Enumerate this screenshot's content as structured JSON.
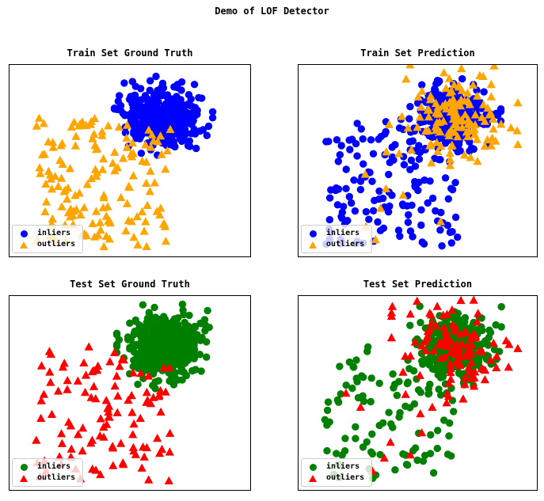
{
  "figure": {
    "title": "Demo of LOF Detector",
    "background": "#ffffff",
    "frame_color": "#000000"
  },
  "palette": {
    "train_inlier": "#0000ff",
    "train_outlier": "#ffa500",
    "test_inlier": "#008000",
    "test_outlier": "#ff0000",
    "legend_border": "#cccccc"
  },
  "chart_data": [
    {
      "type": "scatter",
      "title": "Train Set Ground Truth",
      "legend_position": "lower left",
      "axes": {
        "ticks": false,
        "grid": false,
        "frame": true
      },
      "legend": [
        {
          "label": "inliers",
          "marker": "circle",
          "color": "#0000ff"
        },
        {
          "label": "outliers",
          "marker": "triangle",
          "color": "#ffa500"
        }
      ],
      "series": [
        {
          "name": "inliers",
          "marker": "circle",
          "color": "#0000ff",
          "n": 380,
          "distribution": "gaussian",
          "center": [
            0.64,
            0.28
          ],
          "sigma": [
            0.077,
            0.083
          ],
          "seed": 101
        },
        {
          "name": "outliers",
          "marker": "triangle",
          "color": "#ffa500",
          "n": 150,
          "distribution": "uniform",
          "x_range": [
            0.11,
            0.67
          ],
          "y_range": [
            0.26,
            0.95
          ],
          "exclude": {
            "x_min": 0.5,
            "y_max": 0.33
          },
          "seed": 102
        }
      ]
    },
    {
      "type": "scatter",
      "title": "Train Set Prediction",
      "legend_position": "lower left",
      "axes": {
        "ticks": false,
        "grid": false,
        "frame": true
      },
      "legend": [
        {
          "label": "inliers",
          "marker": "circle",
          "color": "#0000ff"
        },
        {
          "label": "outliers",
          "marker": "triangle",
          "color": "#ffa500"
        }
      ],
      "series": [
        {
          "name": "inliers",
          "marker": "circle",
          "color": "#0000ff",
          "n": 280,
          "distribution": "gaussian",
          "center": [
            0.65,
            0.28
          ],
          "sigma": [
            0.075,
            0.081
          ],
          "seed": 201
        },
        {
          "name": "inliers",
          "marker": "circle",
          "color": "#0000ff",
          "n": 145,
          "distribution": "uniform",
          "x_range": [
            0.11,
            0.67
          ],
          "y_range": [
            0.26,
            0.95
          ],
          "exclude": {
            "x_min": 0.5,
            "y_max": 0.33
          },
          "seed": 202
        },
        {
          "name": "outliers",
          "marker": "triangle",
          "color": "#ffa500",
          "n": 130,
          "distribution": "gaussian",
          "center": [
            0.65,
            0.27
          ],
          "sigma": [
            0.102,
            0.112
          ],
          "seed": 203
        },
        {
          "name": "outliers",
          "marker": "triangle",
          "color": "#ffa500",
          "n": 8,
          "distribution": "uniform",
          "x_range": [
            0.12,
            0.66
          ],
          "y_range": [
            0.45,
            0.96
          ],
          "seed": 204
        }
      ]
    },
    {
      "type": "scatter",
      "title": "Test Set Ground Truth",
      "legend_position": "lower left",
      "axes": {
        "ticks": false,
        "grid": false,
        "frame": true
      },
      "legend": [
        {
          "label": "inliers",
          "marker": "circle",
          "color": "#008000"
        },
        {
          "label": "outliers",
          "marker": "triangle",
          "color": "#ff0000"
        }
      ],
      "series": [
        {
          "name": "inliers",
          "marker": "circle",
          "color": "#008000",
          "n": 450,
          "distribution": "gaussian",
          "center": [
            0.65,
            0.26
          ],
          "sigma": [
            0.077,
            0.082
          ],
          "seed": 301
        },
        {
          "name": "outliers",
          "marker": "triangle",
          "color": "#ff0000",
          "n": 110,
          "distribution": "uniform",
          "x_range": [
            0.11,
            0.67
          ],
          "y_range": [
            0.26,
            0.96
          ],
          "exclude": {
            "x_min": 0.5,
            "y_max": 0.33
          },
          "seed": 302
        }
      ]
    },
    {
      "type": "scatter",
      "title": "Test Set Prediction",
      "legend_position": "lower left",
      "axes": {
        "ticks": false,
        "grid": false,
        "frame": true
      },
      "legend": [
        {
          "label": "inliers",
          "marker": "circle",
          "color": "#008000"
        },
        {
          "label": "outliers",
          "marker": "triangle",
          "color": "#ff0000"
        }
      ],
      "series": [
        {
          "name": "inliers",
          "marker": "circle",
          "color": "#008000",
          "n": 340,
          "distribution": "gaussian",
          "center": [
            0.655,
            0.265
          ],
          "sigma": [
            0.074,
            0.08
          ],
          "seed": 401
        },
        {
          "name": "inliers",
          "marker": "circle",
          "color": "#008000",
          "n": 100,
          "distribution": "uniform",
          "x_range": [
            0.11,
            0.67
          ],
          "y_range": [
            0.26,
            0.95
          ],
          "exclude": {
            "x_min": 0.5,
            "y_max": 0.33
          },
          "seed": 402
        },
        {
          "name": "outliers",
          "marker": "triangle",
          "color": "#ff0000",
          "n": 110,
          "distribution": "gaussian",
          "center": [
            0.655,
            0.26
          ],
          "sigma": [
            0.1,
            0.11
          ],
          "seed": 403
        },
        {
          "name": "outliers",
          "marker": "triangle",
          "color": "#ff0000",
          "n": 10,
          "distribution": "uniform",
          "x_range": [
            0.12,
            0.66
          ],
          "y_range": [
            0.42,
            0.96
          ],
          "seed": 404
        }
      ]
    }
  ]
}
